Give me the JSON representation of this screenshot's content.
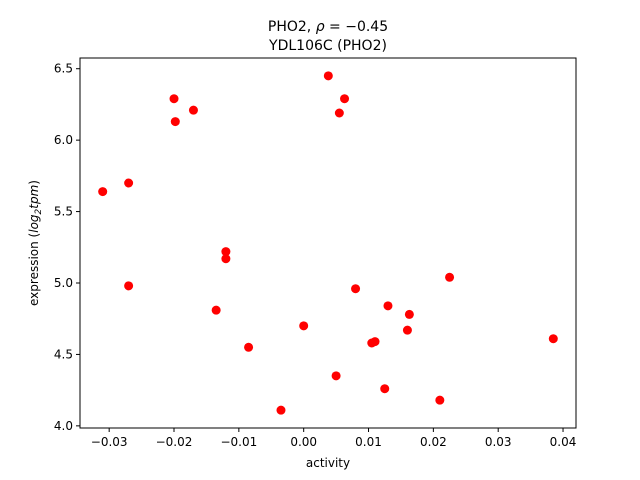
{
  "chart_data": {
    "type": "scatter",
    "title_line1": "PHO2,",
    "title_rho_symbol": "ρ",
    "title_rho_value": "= −0.45",
    "subtitle": "YDL106C (PHO2)",
    "xlabel": "activity",
    "ylabel_prefix": "expression (",
    "ylabel_log": "log",
    "ylabel_sub": "2",
    "ylabel_tpm": "tpm",
    "ylabel_suffix": ")",
    "xlim": [
      -0.0345,
      0.042
    ],
    "ylim": [
      3.985,
      6.575
    ],
    "xticks": [
      -0.03,
      -0.02,
      -0.01,
      0.0,
      0.01,
      0.02,
      0.03,
      0.04
    ],
    "xtick_labels": [
      "−0.03",
      "−0.02",
      "−0.01",
      "0.00",
      "0.01",
      "0.02",
      "0.03",
      "0.04"
    ],
    "yticks": [
      4.0,
      4.5,
      5.0,
      5.5,
      6.0,
      6.5
    ],
    "ytick_labels": [
      "4.0",
      "4.5",
      "5.0",
      "5.5",
      "6.0",
      "6.5"
    ],
    "grid": false,
    "marker_color": "#ff0000",
    "points": [
      {
        "x": -0.031,
        "y": 5.64
      },
      {
        "x": -0.027,
        "y": 5.7
      },
      {
        "x": -0.027,
        "y": 4.98
      },
      {
        "x": -0.02,
        "y": 6.29
      },
      {
        "x": -0.0198,
        "y": 6.13
      },
      {
        "x": -0.017,
        "y": 6.21
      },
      {
        "x": -0.0135,
        "y": 4.81
      },
      {
        "x": -0.012,
        "y": 5.22
      },
      {
        "x": -0.012,
        "y": 5.17
      },
      {
        "x": -0.0085,
        "y": 4.55
      },
      {
        "x": -0.0035,
        "y": 4.11
      },
      {
        "x": 0.0,
        "y": 4.7
      },
      {
        "x": 0.0038,
        "y": 6.45
      },
      {
        "x": 0.0055,
        "y": 6.19
      },
      {
        "x": 0.0063,
        "y": 6.29
      },
      {
        "x": 0.005,
        "y": 4.35
      },
      {
        "x": 0.008,
        "y": 4.96
      },
      {
        "x": 0.0105,
        "y": 4.58
      },
      {
        "x": 0.011,
        "y": 4.59
      },
      {
        "x": 0.0125,
        "y": 4.26
      },
      {
        "x": 0.013,
        "y": 4.84
      },
      {
        "x": 0.016,
        "y": 4.67
      },
      {
        "x": 0.0163,
        "y": 4.78
      },
      {
        "x": 0.021,
        "y": 4.18
      },
      {
        "x": 0.0225,
        "y": 5.04
      },
      {
        "x": 0.0385,
        "y": 4.61
      }
    ]
  }
}
